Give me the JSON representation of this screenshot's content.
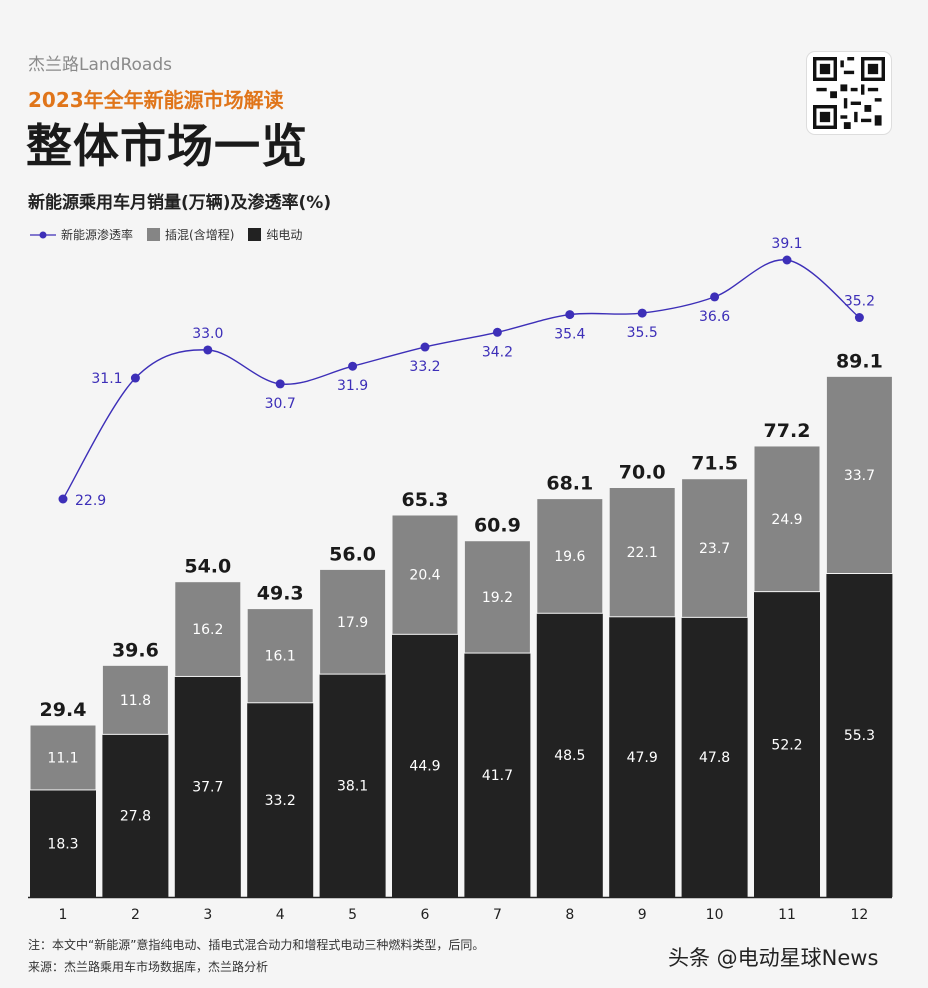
{
  "header": {
    "brand": "杰兰路LandRoads",
    "subtitle": "2023年全年新能源市场解读",
    "title": "整体市场一览"
  },
  "chart_data": {
    "type": "bar",
    "stacked": true,
    "title": "新能源乘用车月销量(万辆)及渗透率(%)",
    "categories": [
      "1",
      "2",
      "3",
      "4",
      "5",
      "6",
      "7",
      "8",
      "9",
      "10",
      "11",
      "12"
    ],
    "series": [
      {
        "name": "纯电动",
        "color": "#222222",
        "values": [
          18.3,
          27.8,
          37.7,
          33.2,
          38.1,
          44.9,
          41.7,
          48.5,
          47.9,
          47.8,
          52.2,
          55.3
        ]
      },
      {
        "name": "插混(含增程)",
        "color": "#858585",
        "values": [
          11.1,
          11.8,
          16.2,
          16.1,
          17.9,
          20.4,
          19.2,
          19.6,
          22.1,
          23.7,
          24.9,
          33.7
        ]
      }
    ],
    "totals": [
      "29.4",
      "39.6",
      "54.0",
      "49.3",
      "56.0",
      "65.3",
      "60.9",
      "68.1",
      "70.0",
      "71.5",
      "77.2",
      "89.1"
    ],
    "line": {
      "name": "新能源渗透率",
      "color": "#3d2fb8",
      "values": [
        22.9,
        31.1,
        33.0,
        30.7,
        31.9,
        33.2,
        34.2,
        35.4,
        35.5,
        36.6,
        39.1,
        35.2
      ]
    },
    "legend_position": "top-left",
    "grid": false
  },
  "notes": {
    "note1": "注：本文中“新能源”意指纯电动、插电式混合动力和增程式电动三种燃料类型，后同。",
    "note2": "来源：杰兰路乘用车市场数据库，杰兰路分析"
  },
  "watermark": "头条 @电动星球News"
}
